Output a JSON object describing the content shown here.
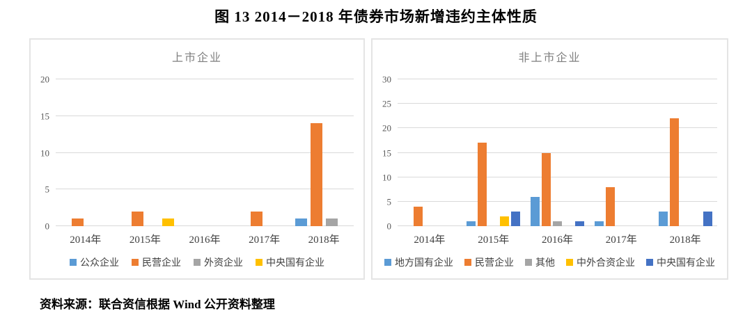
{
  "page": {
    "title": "图 13  2014－2018 年债券市场新增违约主体性质",
    "source": "资料来源：联合资信根据 Wind 公开资料整理"
  },
  "colors": {
    "blue": "#5B9BD5",
    "orange": "#ED7D31",
    "gray": "#A5A5A5",
    "yellow": "#FFC000",
    "dark_blue": "#4472C4",
    "gridline": "#D9D9D9",
    "axis_text": "#595959",
    "chart_title_text": "#7F7F7F",
    "box_border": "#E4E4E4"
  },
  "chart_data": [
    {
      "type": "bar",
      "title": "上市企业",
      "categories": [
        "2014年",
        "2015年",
        "2016年",
        "2017年",
        "2018年"
      ],
      "series": [
        {
          "name": "公众企业",
          "color": "#5B9BD5",
          "values": [
            0,
            0,
            0,
            0,
            1
          ]
        },
        {
          "name": "民营企业",
          "color": "#ED7D31",
          "values": [
            1,
            2,
            0,
            2,
            14
          ]
        },
        {
          "name": "外资企业",
          "color": "#A5A5A5",
          "values": [
            0,
            0,
            0,
            0,
            1
          ]
        },
        {
          "name": "中央国有企业",
          "color": "#FFC000",
          "values": [
            0,
            1,
            0,
            0,
            0
          ]
        }
      ],
      "xlabel": "",
      "ylabel": "",
      "ylim": [
        0,
        20
      ],
      "yticks": [
        0,
        5,
        10,
        15,
        20
      ],
      "grid": true,
      "legend_position": "bottom"
    },
    {
      "type": "bar",
      "title": "非上市企业",
      "categories": [
        "2014年",
        "2015年",
        "2016年",
        "2017年",
        "2018年"
      ],
      "series": [
        {
          "name": "地方国有企业",
          "color": "#5B9BD5",
          "values": [
            0,
            1,
            6,
            1,
            3
          ]
        },
        {
          "name": "民营企业",
          "color": "#ED7D31",
          "values": [
            4,
            17,
            15,
            8,
            22
          ]
        },
        {
          "name": "其他",
          "color": "#A5A5A5",
          "values": [
            0,
            0,
            1,
            0,
            0
          ]
        },
        {
          "name": "中外合资企业",
          "color": "#FFC000",
          "values": [
            0,
            2,
            0,
            0,
            0
          ]
        },
        {
          "name": "中央国有企业",
          "color": "#4472C4",
          "values": [
            0,
            3,
            1,
            0,
            3
          ]
        }
      ],
      "xlabel": "",
      "ylabel": "",
      "ylim": [
        0,
        30
      ],
      "yticks": [
        0,
        5,
        10,
        15,
        20,
        25,
        30
      ],
      "grid": true,
      "legend_position": "bottom"
    }
  ]
}
